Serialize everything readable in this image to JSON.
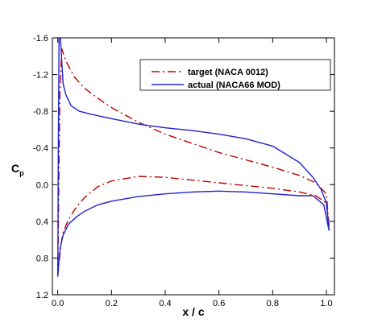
{
  "chart_data": {
    "type": "line",
    "xlabel": "x / c",
    "ylabel": {
      "main": "C",
      "sub": "p"
    },
    "xlim": [
      -0.02,
      1.03
    ],
    "ylim": [
      -1.6,
      1.2
    ],
    "y_inverted": true,
    "x_ticks": [
      "0.0",
      "0.2",
      "0.4",
      "0.6",
      "0.8",
      "1.0"
    ],
    "x_tick_values": [
      0.0,
      0.2,
      0.4,
      0.6,
      0.8,
      1.0
    ],
    "y_ticks": [
      "-1.6",
      "-1.2",
      "-0.8",
      "-0.4",
      "0.0",
      "0.4",
      "0.8",
      "1.2"
    ],
    "y_tick_values": [
      -1.6,
      -1.2,
      -0.8,
      -0.4,
      0.0,
      0.4,
      0.8,
      1.2
    ],
    "grid": false,
    "legend_position": "top-right",
    "series": [
      {
        "name": "target (NACA 0012)",
        "color": "#c00000",
        "dash": "dash-dot",
        "upper": {
          "x": [
            0.0,
            0.003,
            0.008,
            0.015,
            0.03,
            0.06,
            0.1,
            0.15,
            0.2,
            0.3,
            0.4,
            0.5,
            0.6,
            0.7,
            0.8,
            0.9,
            0.96,
            1.0,
            1.01
          ],
          "y": [
            1.0,
            0.2,
            -1.0,
            -1.48,
            -1.35,
            -1.18,
            -1.05,
            -0.94,
            -0.84,
            -0.68,
            -0.55,
            -0.45,
            -0.35,
            -0.27,
            -0.19,
            -0.1,
            -0.02,
            0.1,
            0.45
          ]
        },
        "lower": {
          "x": [
            0.0,
            0.005,
            0.012,
            0.02,
            0.04,
            0.07,
            0.1,
            0.15,
            0.2,
            0.3,
            0.4,
            0.5,
            0.6,
            0.7,
            0.8,
            0.9,
            0.96,
            1.0,
            1.01
          ],
          "y": [
            1.0,
            0.85,
            0.65,
            0.52,
            0.38,
            0.24,
            0.14,
            0.02,
            -0.04,
            -0.09,
            -0.08,
            -0.05,
            -0.02,
            0.01,
            0.04,
            0.08,
            0.12,
            0.2,
            0.45
          ]
        }
      },
      {
        "name": "actual (NACA66 MOD)",
        "color": "#2222cc",
        "dash": "solid",
        "upper": {
          "x": [
            0.0,
            0.002,
            0.005,
            0.01,
            0.02,
            0.03,
            0.05,
            0.08,
            0.12,
            0.2,
            0.3,
            0.4,
            0.5,
            0.6,
            0.7,
            0.8,
            0.9,
            0.95,
            0.98,
            1.0,
            1.01
          ],
          "y": [
            1.0,
            -0.3,
            -1.6,
            -1.6,
            -1.1,
            -0.98,
            -0.86,
            -0.8,
            -0.77,
            -0.72,
            -0.66,
            -0.62,
            -0.59,
            -0.55,
            -0.5,
            -0.42,
            -0.24,
            -0.08,
            0.05,
            0.2,
            0.5
          ]
        },
        "lower": {
          "x": [
            0.0,
            0.005,
            0.01,
            0.02,
            0.04,
            0.07,
            0.1,
            0.15,
            0.2,
            0.3,
            0.4,
            0.5,
            0.6,
            0.7,
            0.8,
            0.9,
            0.95,
            0.99,
            1.01
          ],
          "y": [
            1.0,
            0.8,
            0.68,
            0.55,
            0.43,
            0.35,
            0.29,
            0.22,
            0.18,
            0.13,
            0.1,
            0.08,
            0.07,
            0.08,
            0.1,
            0.12,
            0.12,
            0.22,
            0.5
          ]
        }
      }
    ]
  }
}
